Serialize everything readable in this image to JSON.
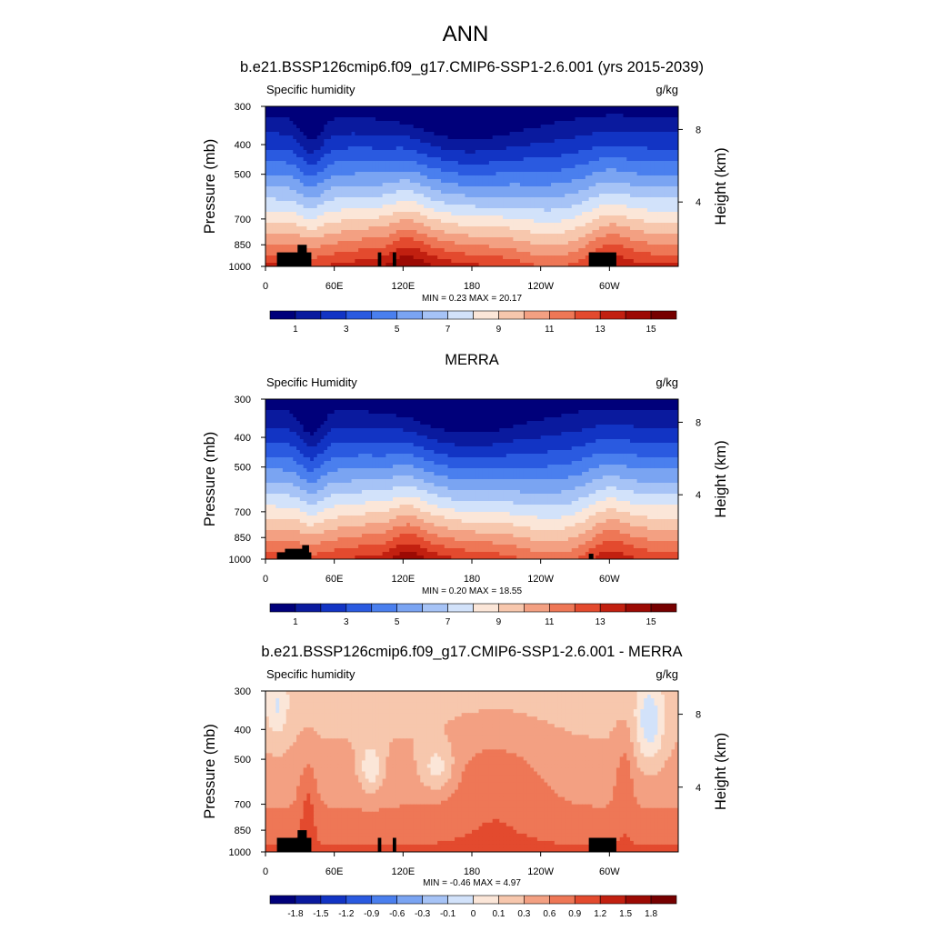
{
  "figure": {
    "title": "ANN"
  },
  "chart_data": [
    {
      "type": "heatmap",
      "title": "b.e21.BSSP126cmip6.f09_g17.CMIP6-SSP1-2.6.001 (yrs 2015-2039)",
      "variable": "Specific humidity",
      "units": "g/kg",
      "xlabel": "",
      "ylabel": "Pressure (mb)",
      "ylabel_right": "Height (km)",
      "x_ticks": [
        "0",
        "60E",
        "120E",
        "180",
        "120W",
        "60W"
      ],
      "y_ticks": [
        "300",
        "400",
        "500",
        "700",
        "850",
        "1000"
      ],
      "y_ticks_right": [
        "8",
        "4"
      ],
      "stats": {
        "min": 0.23,
        "max": 20.17
      },
      "stats_text": "MIN =   0.23  MAX =  20.17",
      "colorbar_levels": [
        1,
        2,
        3,
        4,
        5,
        6,
        7,
        8,
        9,
        10,
        11,
        12,
        13,
        14,
        15
      ],
      "colorbar_labels": [
        "1",
        "3",
        "5",
        "7",
        "9",
        "11",
        "13",
        "15"
      ],
      "colormap": "abs"
    },
    {
      "type": "heatmap",
      "title": "MERRA",
      "variable": "Specific Humidity",
      "units": "g/kg",
      "xlabel": "",
      "ylabel": "Pressure (mb)",
      "ylabel_right": "Height (km)",
      "x_ticks": [
        "0",
        "60E",
        "120E",
        "180",
        "120W",
        "60W"
      ],
      "y_ticks": [
        "300",
        "400",
        "500",
        "700",
        "850",
        "1000"
      ],
      "y_ticks_right": [
        "8",
        "4"
      ],
      "stats": {
        "min": 0.2,
        "max": 18.55
      },
      "stats_text": "MIN =   0.20  MAX =  18.55",
      "colorbar_levels": [
        1,
        2,
        3,
        4,
        5,
        6,
        7,
        8,
        9,
        10,
        11,
        12,
        13,
        14,
        15
      ],
      "colorbar_labels": [
        "1",
        "3",
        "5",
        "7",
        "9",
        "11",
        "13",
        "15"
      ],
      "colormap": "abs"
    },
    {
      "type": "heatmap",
      "title": "b.e21.BSSP126cmip6.f09_g17.CMIP6-SSP1-2.6.001 - MERRA",
      "variable": "Specific humidity",
      "units": "g/kg",
      "xlabel": "",
      "ylabel": "Pressure (mb)",
      "ylabel_right": "Height (km)",
      "x_ticks": [
        "0",
        "60E",
        "120E",
        "180",
        "120W",
        "60W"
      ],
      "y_ticks": [
        "300",
        "400",
        "500",
        "700",
        "850",
        "1000"
      ],
      "y_ticks_right": [
        "8",
        "4"
      ],
      "stats": {
        "min": -0.46,
        "max": 4.97
      },
      "stats_text": "MIN =  -0.46  MAX =   4.97",
      "colorbar_levels": [
        -1.8,
        -1.5,
        -1.2,
        -0.9,
        -0.6,
        -0.3,
        -0.1,
        0,
        0.1,
        0.3,
        0.6,
        0.9,
        1.2,
        1.5,
        1.8
      ],
      "colorbar_labels": [
        "-1.8",
        "-1.5",
        "-1.2",
        "-0.9",
        "-0.6",
        "-0.3",
        "-0.1",
        "0",
        "0.1",
        "0.3",
        "0.6",
        "0.9",
        "1.2",
        "1.5",
        "1.8"
      ],
      "colormap": "diff"
    }
  ],
  "colors": {
    "palette": [
      "#00007a",
      "#0a1a9e",
      "#1234c4",
      "#2a5ae0",
      "#4a7fee",
      "#7aa4f2",
      "#a6c3f6",
      "#d2e2fa",
      "#fbe6d8",
      "#f7c7ad",
      "#f3a082",
      "#ee7756",
      "#e34a2e",
      "#c22010",
      "#9c0a04",
      "#760000"
    ],
    "topography": "#000000"
  }
}
